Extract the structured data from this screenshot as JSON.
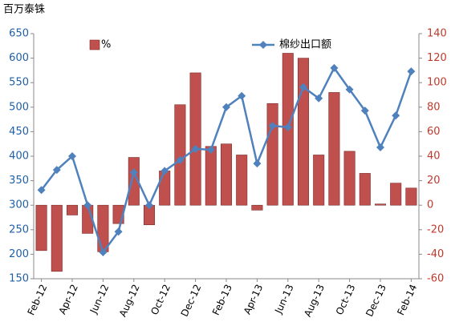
{
  "chart_data": {
    "type": "bar-line",
    "y_label": "百万泰铢",
    "categories": [
      "Feb-12",
      null,
      "Apr-12",
      null,
      "Jun-12",
      null,
      "Aug-12",
      null,
      "Oct-12",
      null,
      "Dec-12",
      null,
      "Feb-13",
      null,
      "Apr-13",
      null,
      "Jun-13",
      null,
      "Aug-13",
      null,
      "Oct-13",
      null,
      "Dec-13",
      null,
      "Feb-14"
    ],
    "series": [
      {
        "name": "%",
        "type": "bar",
        "axis": "y2",
        "color": "#c0504d",
        "values": [
          -37,
          -54,
          -8,
          -23,
          -38,
          -15,
          39,
          -16,
          28,
          82,
          108,
          48,
          50,
          41,
          -4,
          83,
          124,
          120,
          41,
          92,
          44,
          26,
          1,
          18,
          14
        ]
      },
      {
        "name": "棉纱出口额",
        "type": "line",
        "axis": "y",
        "color": "#4f81bd",
        "values": [
          331,
          372,
          400,
          300,
          204,
          246,
          367,
          300,
          370,
          392,
          415,
          413,
          500,
          523,
          385,
          462,
          459,
          541,
          518,
          580,
          536,
          493,
          418,
          483,
          573
        ]
      }
    ],
    "ylim": [
      150,
      650
    ],
    "yticks": [
      150,
      200,
      250,
      300,
      350,
      400,
      450,
      500,
      550,
      600,
      650
    ],
    "ytick_color": "#1f5fa8",
    "y2lim": [
      -60,
      140
    ],
    "y2ticks": [
      -60,
      -40,
      -20,
      0,
      20,
      40,
      60,
      80,
      100,
      120,
      140
    ],
    "y2tick_color": "#c0392b",
    "grid": false
  }
}
